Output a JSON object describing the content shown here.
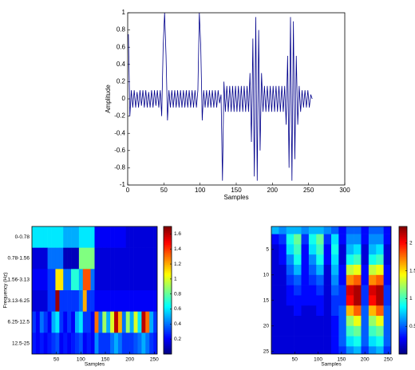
{
  "chart_data": [
    {
      "type": "line",
      "xlabel": "Samples",
      "ylabel": "Amplitude",
      "color": "#00008b",
      "x": [
        1,
        3,
        5,
        7,
        9,
        11,
        13,
        15,
        17,
        19,
        21,
        23,
        25,
        27,
        29,
        31,
        33,
        35,
        37,
        39,
        41,
        43,
        45,
        47,
        49,
        51,
        53,
        55,
        57,
        59,
        61,
        63,
        65,
        67,
        69,
        71,
        73,
        75,
        77,
        79,
        81,
        83,
        85,
        87,
        89,
        91,
        93,
        95,
        97,
        99,
        101,
        103,
        105,
        107,
        109,
        111,
        113,
        115,
        117,
        119,
        121,
        123,
        125,
        127,
        129,
        131,
        133,
        135,
        137,
        139,
        141,
        143,
        145,
        147,
        149,
        151,
        153,
        155,
        157,
        159,
        161,
        163,
        165,
        167,
        169,
        171,
        173,
        175,
        177,
        179,
        181,
        183,
        185,
        187,
        189,
        191,
        193,
        195,
        197,
        199,
        201,
        203,
        205,
        207,
        209,
        211,
        213,
        215,
        217,
        219,
        221,
        223,
        225,
        227,
        229,
        231,
        233,
        235,
        237,
        239,
        241,
        243,
        245,
        247,
        249,
        251,
        253,
        255
      ],
      "values": [
        0.75,
        -0.2,
        0.1,
        -0.1,
        0.1,
        -0.1,
        0.08,
        -0.1,
        0.1,
        -0.08,
        0.1,
        -0.1,
        0.1,
        -0.1,
        0.08,
        -0.1,
        0.1,
        -0.1,
        0.1,
        -0.08,
        0.1,
        -0.1,
        0.1,
        -0.2,
        0.6,
        1,
        0.5,
        -0.25,
        0.1,
        -0.1,
        0.1,
        -0.1,
        0.1,
        -0.1,
        0.1,
        -0.1,
        0.1,
        -0.1,
        0.1,
        -0.1,
        0.1,
        -0.1,
        0.1,
        -0.1,
        0.1,
        -0.1,
        0.1,
        -0.1,
        0.1,
        1,
        0.6,
        -0.25,
        0.1,
        -0.1,
        0.1,
        -0.1,
        0.1,
        -0.1,
        0.1,
        -0.1,
        0.1,
        -0.1,
        0.1,
        -0.05,
        0.05,
        -0.95,
        0.2,
        -0.15,
        0.15,
        -0.15,
        0.15,
        -0.15,
        0.15,
        -0.15,
        0.15,
        -0.15,
        0.15,
        -0.15,
        0.15,
        -0.15,
        0.15,
        -0.15,
        0.15,
        -0.15,
        0.3,
        -0.5,
        0.7,
        -0.9,
        0.95,
        -0.95,
        0.8,
        -0.6,
        0.3,
        -0.15,
        0.15,
        -0.15,
        0.15,
        -0.15,
        0.15,
        -0.15,
        0.15,
        -0.15,
        0.15,
        -0.15,
        0.15,
        -0.15,
        0.15,
        -0.15,
        0.15,
        -0.3,
        0.5,
        -0.8,
        0.95,
        -0.95,
        0.9,
        -0.7,
        0.5,
        -0.3,
        0.15,
        -0.15,
        0.1,
        -0.1,
        0.1,
        -0.1,
        0.1,
        -0.1,
        0.05,
        0
      ],
      "xlim": [
        0,
        300
      ],
      "ylim": [
        -1,
        1
      ],
      "xticks": [
        0,
        50,
        100,
        150,
        200,
        250,
        300
      ],
      "yticks": [
        -1,
        -0.8,
        -0.6,
        -0.4,
        -0.2,
        0,
        0.2,
        0.4,
        0.6,
        0.8,
        1
      ]
    },
    {
      "type": "heatmap",
      "xlabel": "Samples",
      "ylabel": "Frequency (Hz)",
      "colormap": "jet",
      "categories": [
        "0-0.78",
        "0.78-1.56",
        "1.56-3.13",
        "3.13-6.25",
        "6.25-12.5",
        "12.5-25"
      ],
      "x": [
        4,
        12,
        20,
        28,
        36,
        44,
        52,
        60,
        68,
        76,
        84,
        92,
        100,
        108,
        116,
        124,
        132,
        140,
        148,
        156,
        164,
        172,
        180,
        188,
        196,
        204,
        212,
        220,
        228,
        236,
        244,
        252
      ],
      "z": [
        [
          0.6,
          0.6,
          0.6,
          0.6,
          0.6,
          0.6,
          0.6,
          0.6,
          0.5,
          0.5,
          0.5,
          0.5,
          0.6,
          0.6,
          0.6,
          0.6,
          0.2,
          0.2,
          0.2,
          0.2,
          0.2,
          0.2,
          0.2,
          0.2,
          0.15,
          0.15,
          0.15,
          0.15,
          0.15,
          0.15,
          0.15,
          0.15
        ],
        [
          0.15,
          0.15,
          0.15,
          0.15,
          0.4,
          0.4,
          0.4,
          0.4,
          0.1,
          0.1,
          0.1,
          0.1,
          0.85,
          0.85,
          0.85,
          0.85,
          0.15,
          0.15,
          0.15,
          0.15,
          0.15,
          0.15,
          0.15,
          0.15,
          0.15,
          0.15,
          0.15,
          0.15,
          0.15,
          0.15,
          0.15,
          0.15
        ],
        [
          0.2,
          0.2,
          0.2,
          0.2,
          0.3,
          0.3,
          1.1,
          1.1,
          0.4,
          0.4,
          0.7,
          0.7,
          0.5,
          1.35,
          1.35,
          0.4,
          0.15,
          0.15,
          0.15,
          0.15,
          0.15,
          0.15,
          0.15,
          0.15,
          0.15,
          0.15,
          0.15,
          0.15,
          0.15,
          0.15,
          0.15,
          0.15
        ],
        [
          0.15,
          0.15,
          0.15,
          0.15,
          0.3,
          0.3,
          1.65,
          0.3,
          0.3,
          0.3,
          0.3,
          0.3,
          0.4,
          1.2,
          0.3,
          0.3,
          0.2,
          0.2,
          0.2,
          0.2,
          0.2,
          0.2,
          0.2,
          0.2,
          0.2,
          0.2,
          0.2,
          0.2,
          0.2,
          0.2,
          0.2,
          0.2
        ],
        [
          0.3,
          0.2,
          0.4,
          0.3,
          0.2,
          0.5,
          0.6,
          0.3,
          0.2,
          0.3,
          0.2,
          0.5,
          0.6,
          0.3,
          0.3,
          0.2,
          1.3,
          0.4,
          0.9,
          0.5,
          1,
          1.6,
          1.2,
          0.4,
          0.9,
          0.5,
          1,
          0.6,
          1.6,
          1.3,
          0.5,
          0.3
        ],
        [
          0.25,
          0.2,
          0.25,
          0.2,
          0.25,
          0.3,
          0.35,
          0.2,
          0.25,
          0.2,
          0.25,
          0.3,
          0.35,
          0.2,
          0.25,
          0.2,
          0.45,
          0.3,
          0.3,
          0.3,
          0.4,
          0.5,
          0.4,
          0.3,
          0.3,
          0.3,
          0.35,
          0.4,
          0.5,
          0.4,
          0.3,
          0.25
        ]
      ],
      "xlim": [
        0,
        256
      ],
      "xticks": [
        50,
        100,
        150,
        200,
        250
      ],
      "clim": [
        0,
        1.7
      ],
      "cticks": [
        0.2,
        0.4,
        0.6,
        0.8,
        1,
        1.2,
        1.4,
        1.6
      ]
    },
    {
      "type": "heatmap",
      "xlabel": "Samples",
      "colormap": "jet",
      "y": [
        1,
        3,
        5,
        7,
        9,
        11,
        13,
        15,
        17,
        19,
        21,
        23,
        25
      ],
      "x": [
        8,
        24,
        40,
        56,
        72,
        88,
        104,
        120,
        136,
        152,
        168,
        184,
        200,
        216,
        232,
        248
      ],
      "z": [
        [
          0.7,
          0.6,
          0.7,
          0.7,
          0.6,
          0.7,
          0.7,
          0.6,
          0.5,
          0.3,
          0.5,
          0.5,
          0.3,
          0.5,
          0.5,
          0.3
        ],
        [
          0.3,
          0.4,
          0.9,
          1.1,
          0.4,
          0.9,
          1.1,
          0.4,
          0.8,
          0.3,
          0.6,
          0.6,
          0.3,
          0.6,
          0.6,
          0.3
        ],
        [
          0.2,
          0.3,
          0.8,
          1,
          0.3,
          0.8,
          1,
          0.3,
          0.9,
          0.2,
          0.7,
          0.8,
          0.2,
          0.7,
          0.8,
          0.2
        ],
        [
          0.2,
          0.3,
          0.6,
          0.9,
          0.3,
          0.6,
          0.9,
          0.3,
          0.8,
          0.2,
          0.9,
          1,
          0.2,
          0.9,
          1,
          0.2
        ],
        [
          0.2,
          0.2,
          0.5,
          0.7,
          0.3,
          0.5,
          0.7,
          0.2,
          0.7,
          0.3,
          1.3,
          1.4,
          0.3,
          1.3,
          1.4,
          0.3
        ],
        [
          0.2,
          0.2,
          0.4,
          0.5,
          0.3,
          0.4,
          0.5,
          0.2,
          0.6,
          0.3,
          1.7,
          1.8,
          0.3,
          1.7,
          1.8,
          0.3
        ],
        [
          0.2,
          0.2,
          0.3,
          0.4,
          0.3,
          0.3,
          0.4,
          0.2,
          0.5,
          0.4,
          2.1,
          2.2,
          0.4,
          2.1,
          2.2,
          0.4
        ],
        [
          0.2,
          0.2,
          0.3,
          0.3,
          0.3,
          0.3,
          0.3,
          0.2,
          0.4,
          0.4,
          2,
          2.2,
          0.4,
          2,
          2.2,
          0.4
        ],
        [
          0.2,
          0.2,
          0.2,
          0.3,
          0.2,
          0.2,
          0.3,
          0.2,
          0.4,
          0.5,
          1.6,
          1.8,
          0.5,
          1.6,
          1.8,
          0.5
        ],
        [
          0.2,
          0.2,
          0.2,
          0.2,
          0.2,
          0.2,
          0.2,
          0.2,
          0.3,
          0.5,
          1.2,
          1.4,
          0.5,
          1.2,
          1.4,
          0.5
        ],
        [
          0.2,
          0.2,
          0.2,
          0.2,
          0.2,
          0.2,
          0.2,
          0.2,
          0.3,
          0.5,
          1,
          1.1,
          0.5,
          1,
          1.1,
          0.5
        ],
        [
          0.2,
          0.2,
          0.2,
          0.2,
          0.2,
          0.2,
          0.2,
          0.2,
          0.3,
          0.5,
          0.8,
          0.9,
          0.5,
          0.8,
          0.9,
          0.5
        ],
        [
          0.2,
          0.2,
          0.2,
          0.2,
          0.2,
          0.2,
          0.2,
          0.2,
          0.3,
          0.4,
          0.6,
          0.7,
          0.4,
          0.6,
          0.7,
          0.4
        ]
      ],
      "xlim": [
        0,
        256
      ],
      "ylim": [
        0.5,
        25.5
      ],
      "xticks": [
        50,
        100,
        150,
        200,
        250
      ],
      "yticks": [
        5,
        10,
        15,
        20,
        25
      ],
      "clim": [
        0,
        2.3
      ],
      "cticks": [
        0.5,
        1,
        1.5,
        2
      ]
    }
  ]
}
